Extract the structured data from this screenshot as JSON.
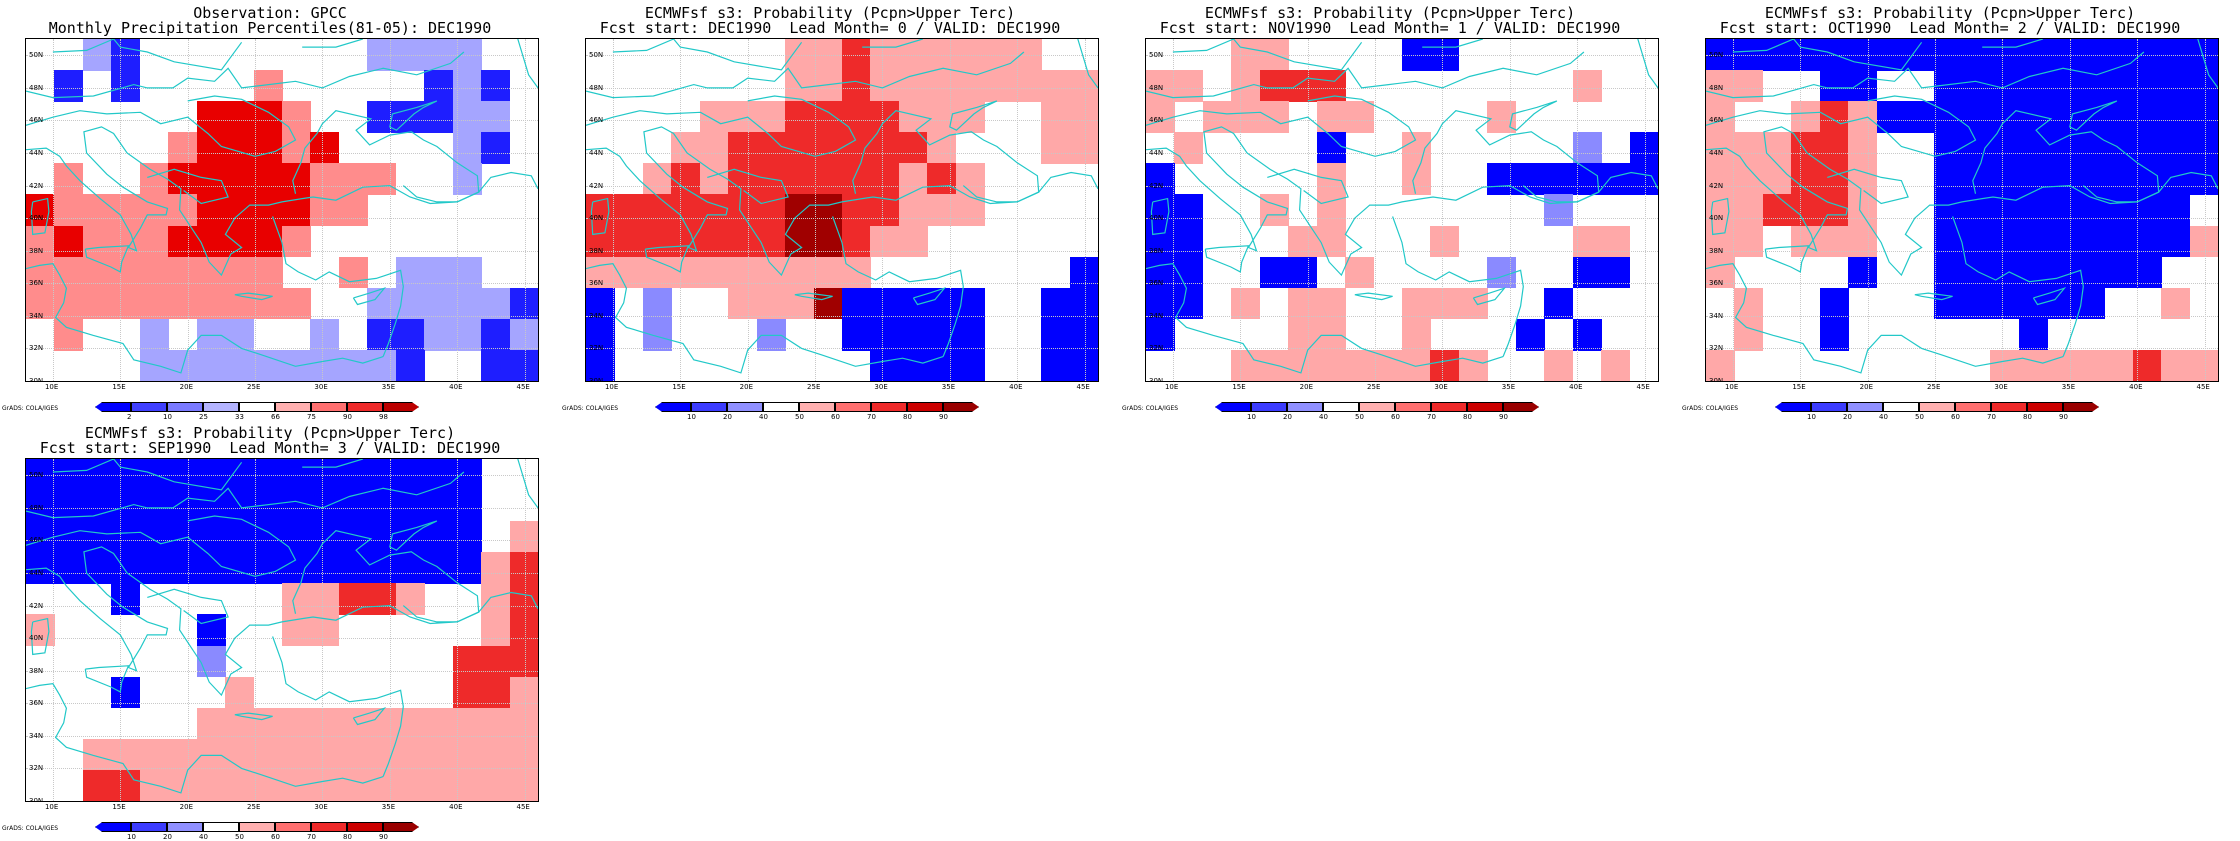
{
  "panels": [
    {
      "id": "obs",
      "title_line1": "Observation: GPCC",
      "title_line2": "Monthly Precipitation Percentiles(81-05): DEC1990",
      "colorbar_ticks": [
        "2",
        "10",
        "25",
        "33",
        "66",
        "75",
        "90",
        "98"
      ],
      "colorbar_colors": [
        "#0000ff",
        "#4040ff",
        "#7a7aff",
        "#b4b4ff",
        "#ffffff",
        "#ffb0b0",
        "#ff7070",
        "#ee2a2a",
        "#bb0000"
      ],
      "credit": "GrADS: COLA/IGES",
      "grid": [
        "..bB........bbbb..",
        ".B.B....r.....BbB.",
        "......RRRr..BBBbb.",
        ".....rRRRrR....bB.",
        ".r..rRRRRRrrr..b..",
        "RrrrrrRRRRrr......",
        "rRrrrRRRRr........",
        "rrrrrrrrr..r.bbb..",
        "rrrrrrrrrr..bbbbbB",
        ".r..b.bb..b.BBbbBb",
        "....bbbbbbbbbB..BB"
      ]
    },
    {
      "id": "lead0",
      "title_line1": "ECMWFsf s3: Probability (Pcpn>Upper Terc)",
      "title_line2": "Fcst start: DEC1990  Lead Month= 0 / VALID: DEC1990",
      "colorbar_ticks": [
        "10",
        "20",
        "40",
        "50",
        "60",
        "70",
        "80",
        "90"
      ],
      "colorbar_colors": [
        "#0000ff",
        "#3c3cff",
        "#9090ff",
        "#ffffff",
        "#ffb0b0",
        "#ff7070",
        "#ee2a2a",
        "#cc0000",
        "#990000"
      ],
      "credit": "GrADS: COLA/IGES",
      "grid": [
        ".......rrRrrrrrr..",
        ".......rrRrrrrrrrr",
        "....rrrRRRRrrr..rr",
        "...rrRRRRRRRr...rr",
        "..rRrRRRRRRrRr....",
        "RRRRRRRDDRRrrr....",
        "RRRRRRRDDRrr......",
        "rrrrrrrrrr.......B",
        "B.b..rrrDBBBBB..BB",
        "B.b...b..BBBBB..BB",
        "B.........BBBB..BB"
      ]
    },
    {
      "id": "lead1",
      "title_line1": "ECMWFsf s3: Probability (Pcpn>Upper Terc)",
      "title_line2": "Fcst start: NOV1990  Lead Month= 1 / VALID: DEC1990",
      "colorbar_ticks": [
        "10",
        "20",
        "40",
        "50",
        "60",
        "70",
        "80",
        "90"
      ],
      "colorbar_colors": [
        "#0000ff",
        "#3c3cff",
        "#9090ff",
        "#ffffff",
        "#ffb0b0",
        "#ff7070",
        "#ee2a2a",
        "#cc0000",
        "#990000"
      ],
      "credit": "GrADS: COLA/IGES",
      "grid": [
        "...rr....BB.......",
        "rr.rRRR........r..",
        "r.rrr.rr....r.....",
        ".r....B..r.....b.B",
        "B.....r..r..BBBBBB",
        "BB..r.r.......b...",
        "BB...rr...r....rr.",
        "BB..BB.r....b..BB.",
        "BB.r.rr..rrr..B...",
        "B....rr..r...B.B..",
        "...rrrrrrrRr..r.r."
      ]
    },
    {
      "id": "lead2",
      "title_line1": "ECMWFsf s3: Probability (Pcpn>Upper Terc)",
      "title_line2": "Fcst start: OCT1990  Lead Month= 2 / VALID: DEC1990",
      "colorbar_ticks": [
        "10",
        "20",
        "40",
        "50",
        "60",
        "70",
        "80",
        "90"
      ],
      "colorbar_colors": [
        "#0000ff",
        "#3c3cff",
        "#9090ff",
        "#ffffff",
        "#ffb0b0",
        "#ff7070",
        "#ee2a2a",
        "#cc0000",
        "#990000"
      ],
      "credit": "GrADS: COLA/IGES",
      "grid": [
        "BBBBBBBBBBBBBBBBBB",
        "rr..BB..BBBBBBBBBB",
        "r..rRrBBBBBBBBBBBB",
        "rrrRRr..BBBBBBBBBB",
        "rrrRRr..BBBBBBBBBB",
        "rrRRRr..BBBBBBBBB.",
        "rr.rrr..BBBBBBBBBr",
        "r....B..BBBBBBBB..",
        ".r..B...BBBBBB..r.",
        ".r..B......B......",
        "r.........rrrrrRrr"
      ]
    },
    {
      "id": "lead3",
      "title_line1": "ECMWFsf s3: Probability (Pcpn>Upper Terc)",
      "title_line2": "Fcst start: SEP1990  Lead Month= 3 / VALID: DEC1990",
      "colorbar_ticks": [
        "10",
        "20",
        "40",
        "50",
        "60",
        "70",
        "80",
        "90"
      ],
      "colorbar_colors": [
        "#0000ff",
        "#3c3cff",
        "#9090ff",
        "#ffffff",
        "#ffb0b0",
        "#ff7070",
        "#ee2a2a",
        "#cc0000",
        "#990000"
      ],
      "credit": "GrADS: COLA/IGES",
      "grid": [
        "BBBBBBBBBBBBBBBB..",
        "BBBBBBBBBBBBBBBB..",
        "BBBBBBBBBBBBBBBB.r",
        "BBBBBBBBBBBBBBBBrR",
        "...B.....rrRRr..rR",
        "r.....B..rr.....rR",
        "......b........RRR",
        "...B...r.......RRr",
        "......rrrrrrrrrrrr",
        "..rrrrrrrrrrrrrrrr",
        "..RRrrrrrrrrrrrrrr"
      ]
    }
  ],
  "lat_labels": [
    "50N",
    "48N",
    "46N",
    "44N",
    "42N",
    "40N",
    "38N",
    "36N",
    "34N",
    "32N",
    "30N"
  ],
  "lon_labels": [
    "10E",
    "15E",
    "20E",
    "25E",
    "30E",
    "35E",
    "40E",
    "45E"
  ]
}
